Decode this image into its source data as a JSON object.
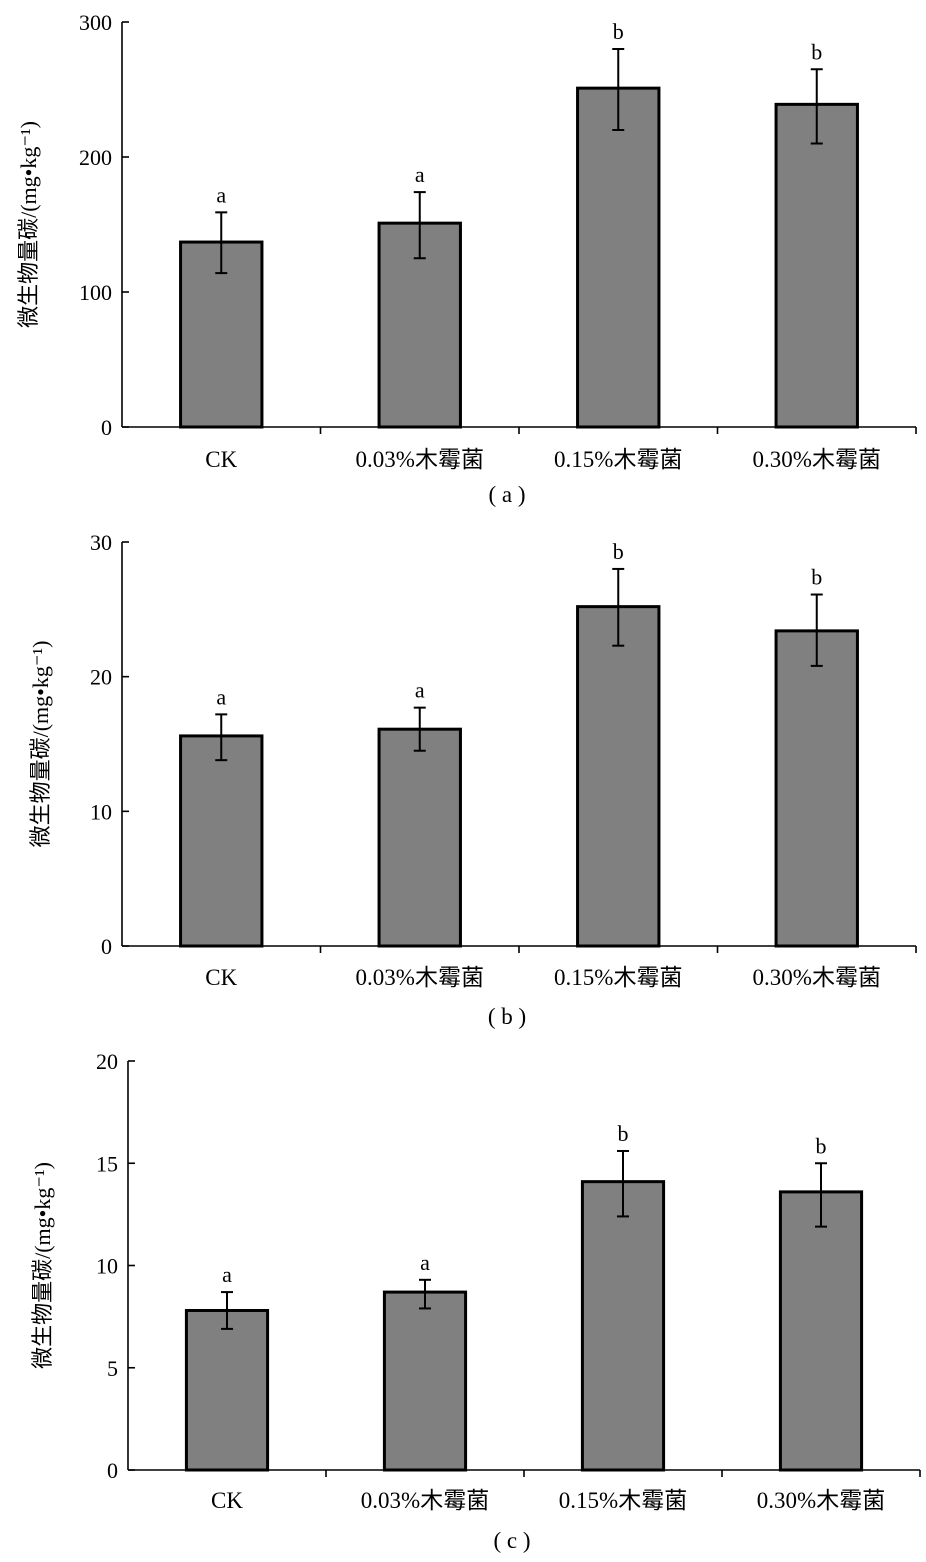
{
  "chart_data": [
    {
      "type": "bar",
      "panel_label": "( a )",
      "ylabel": "微生物量碳/(mg•kg⁻¹)",
      "categories": [
        "CK",
        "0.03%木霉菌",
        "0.15%木霉菌",
        "0.30%木霉菌"
      ],
      "values": [
        137,
        151,
        251,
        239
      ],
      "error_low": [
        114,
        125,
        220,
        210
      ],
      "error_high": [
        159,
        174,
        280,
        265
      ],
      "significance": [
        "a",
        "a",
        "b",
        "b"
      ],
      "ylim": [
        0,
        300
      ],
      "yticks": [
        0,
        100,
        200,
        300
      ]
    },
    {
      "type": "bar",
      "panel_label": "( b )",
      "ylabel": "微生物量碳/(mg•kg⁻¹)",
      "categories": [
        "CK",
        "0.03%木霉菌",
        "0.15%木霉菌",
        "0.30%木霉菌"
      ],
      "values": [
        15.6,
        16.1,
        25.2,
        23.4
      ],
      "error_low": [
        13.8,
        14.5,
        22.3,
        20.8
      ],
      "error_high": [
        17.2,
        17.7,
        28.0,
        26.1
      ],
      "significance": [
        "a",
        "a",
        "b",
        "b"
      ],
      "ylim": [
        0,
        30
      ],
      "yticks": [
        0,
        10,
        20,
        30
      ]
    },
    {
      "type": "bar",
      "panel_label": "( c )",
      "ylabel": "微生物量碳/(mg•kg⁻¹)",
      "categories": [
        "CK",
        "0.03%木霉菌",
        "0.15%木霉菌",
        "0.30%木霉菌"
      ],
      "values": [
        7.8,
        8.7,
        14.1,
        13.6
      ],
      "error_low": [
        6.9,
        7.9,
        12.4,
        11.9
      ],
      "error_high": [
        8.7,
        9.3,
        15.6,
        15.0
      ],
      "significance": [
        "a",
        "a",
        "b",
        "b"
      ],
      "ylim": [
        0,
        20
      ],
      "yticks": [
        0,
        5,
        10,
        15,
        20
      ]
    }
  ]
}
